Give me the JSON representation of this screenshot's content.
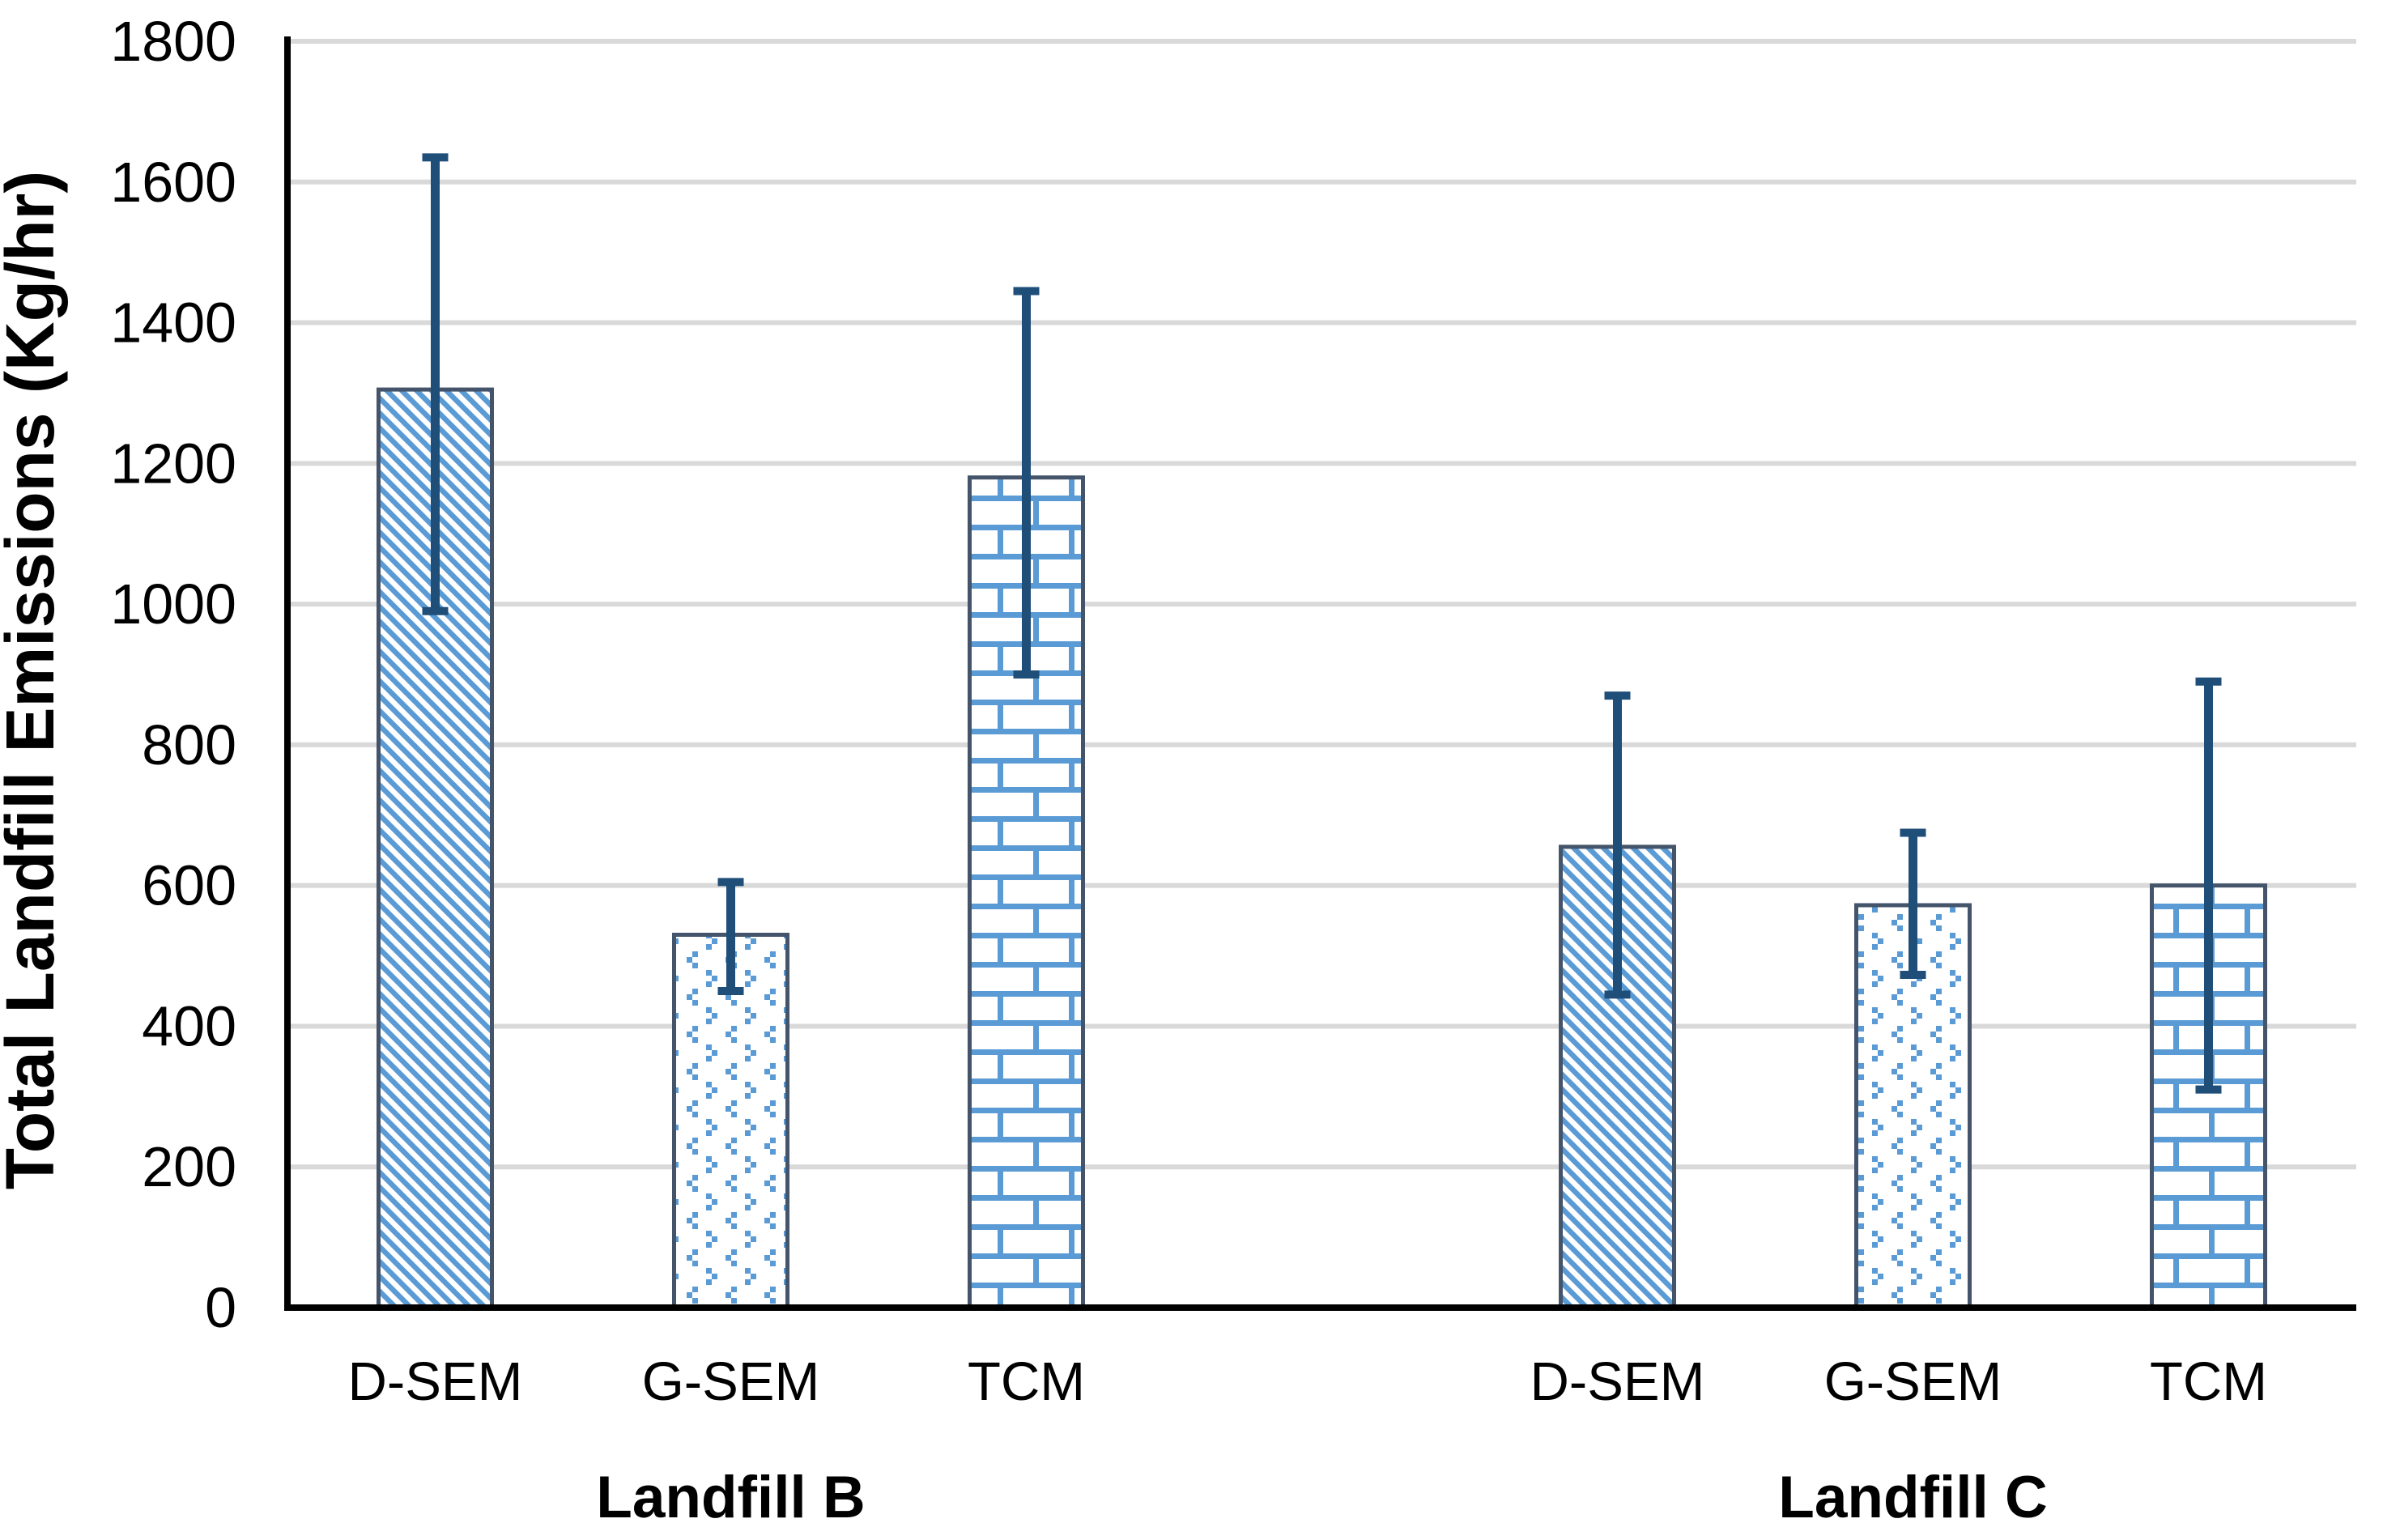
{
  "page": {
    "background": "#FFFFFF"
  },
  "chart_data": {
    "type": "bar",
    "title": "",
    "xlabel": "",
    "ylabel": "Total Landfill Emissions (Kg/hr)",
    "ylim": [
      0,
      1800
    ],
    "ytick_interval": 200,
    "ytick_labels": [
      "0",
      "200",
      "400",
      "600",
      "800",
      "1000",
      "1200",
      "1400",
      "1600",
      "1800"
    ],
    "grid": true,
    "legend_position": "none",
    "error_bars": true,
    "pattern_legend": {
      "D-SEM": "diagonal-hatch",
      "G-SEM": "dotted",
      "TCM": "brick"
    },
    "groups": [
      {
        "label": "Landfill B",
        "bars": [
          {
            "category": "D-SEM",
            "value": 1305,
            "error_low": 990,
            "error_high": 1635,
            "pattern": "diagonal-hatch"
          },
          {
            "category": "G-SEM",
            "value": 530,
            "error_low": 450,
            "error_high": 605,
            "pattern": "dotted"
          },
          {
            "category": "TCM",
            "value": 1180,
            "error_low": 900,
            "error_high": 1445,
            "pattern": "brick"
          }
        ]
      },
      {
        "label": "Landfill C",
        "bars": [
          {
            "category": "D-SEM",
            "value": 655,
            "error_low": 445,
            "error_high": 870,
            "pattern": "diagonal-hatch"
          },
          {
            "category": "G-SEM",
            "value": 572,
            "error_low": 473,
            "error_high": 675,
            "pattern": "dotted"
          },
          {
            "category": "TCM",
            "value": 600,
            "error_low": 310,
            "error_high": 890,
            "pattern": "brick"
          }
        ]
      }
    ],
    "colors": {
      "pattern_blue": "#5B9BD5",
      "bar_border": "#44546A",
      "error_bar": "#1F4E79",
      "gridline": "#D9D9D9",
      "axis": "#000000",
      "text": "#000000",
      "background": "#FFFFFF"
    }
  }
}
